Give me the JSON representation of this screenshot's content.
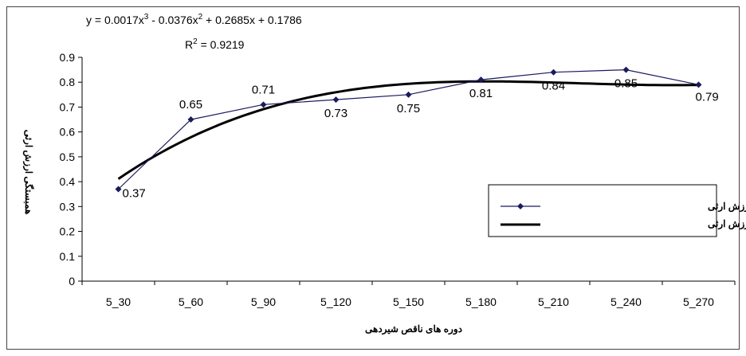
{
  "chart_data": {
    "type": "line",
    "equation": {
      "prefix": "y = 0.0017x",
      "exp1": "3",
      "mid1": " - 0.0376x",
      "exp2": "2",
      "rest": " + 0.2685x + 0.1786"
    },
    "r_squared": {
      "label": "R",
      "exp": "2",
      "value": " = 0.9219"
    },
    "categories": [
      "5_30",
      "5_60",
      "5_90",
      "5_120",
      "5_150",
      "5_180",
      "5_210",
      "5_240",
      "5_270"
    ],
    "series": [
      {
        "name": "همبستگی ارزش ارثی",
        "values": [
          0.37,
          0.65,
          0.71,
          0.73,
          0.75,
          0.81,
          0.84,
          0.85,
          0.79
        ],
        "data_labels": [
          "0.37",
          "0.65",
          "0.71",
          "0.73",
          "0.75",
          "0.81",
          "0.84",
          "0.85",
          "0.79"
        ],
        "color": "#1a1a5e",
        "marker": "diamond"
      },
      {
        "name": "همبستگی چند گانه ارزش ارثی",
        "trendline": "polynomial-3",
        "coefficients": [
          0.0017,
          -0.0376,
          0.2685,
          0.1786
        ],
        "color": "#000000"
      }
    ],
    "xlabel": "دوره های ناقص شیردهی",
    "ylabel": "همبستگی ارزش ارثی",
    "ylim": [
      0,
      0.9
    ],
    "yticks": [
      "0",
      "0.1",
      "0.2",
      "0.3",
      "0.4",
      "0.5",
      "0.6",
      "0.7",
      "0.8",
      "0.9"
    ],
    "grid": false,
    "legend_position": "right"
  }
}
